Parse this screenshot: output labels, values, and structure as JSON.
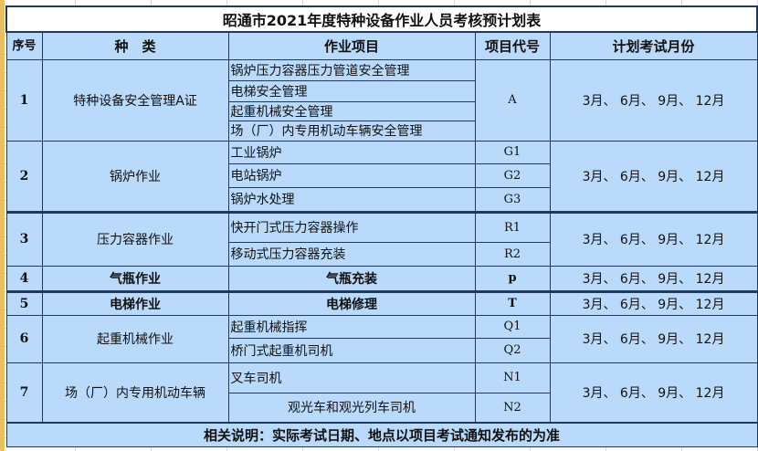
{
  "title": "昭通市2021年度特种设备作业人员考核预计划表",
  "headers": {
    "seq": "序号",
    "category": "种　类",
    "item": "作业项目",
    "code": "项目代号",
    "months": "计划考试月份"
  },
  "rows": [
    {
      "seq": "1",
      "category": "特种设备安全管理A证",
      "bold": false,
      "items": [
        {
          "name": "锅炉压力容器压力管道安全管理"
        },
        {
          "name": "电梯安全管理"
        },
        {
          "name": "起重机械安全管理"
        },
        {
          "name": "场（厂）内专用机动车辆安全管理"
        }
      ],
      "codes": [
        "A"
      ],
      "months": "3月、 6月、 9月、 12月"
    },
    {
      "seq": "2",
      "category": "锅炉作业",
      "bold": false,
      "items": [
        {
          "name": "工业锅炉",
          "code": "G1"
        },
        {
          "name": "电站锅炉",
          "code": "G2"
        },
        {
          "name": "锅炉水处理",
          "code": "G3"
        }
      ],
      "months": "3月、 6月、 9月、 12月"
    },
    {
      "seq": "3",
      "category": "压力容器作业",
      "bold": false,
      "items": [
        {
          "name": "快开门式压力容器操作",
          "code": "R1"
        },
        {
          "name": "移动式压力容器充装",
          "code": "R2"
        }
      ],
      "months": "3月、 6月、 9月、 12月"
    },
    {
      "seq": "4",
      "category": "气瓶作业",
      "bold": true,
      "items": [
        {
          "name": "气瓶充装",
          "code": "p"
        }
      ],
      "months": "3月、 6月、 9月、 12月"
    },
    {
      "seq": "5",
      "category": "电梯作业",
      "bold": true,
      "items": [
        {
          "name": "电梯修理",
          "code": "T"
        }
      ],
      "months": "3月、 6月、 9月、 12月"
    },
    {
      "seq": "6",
      "category": "起重机械作业",
      "bold": false,
      "items": [
        {
          "name": "起重机械指挥",
          "code": "Q1"
        },
        {
          "name": "桥门式起重机司机",
          "code": "Q2"
        }
      ],
      "months": "3月、 6月、 9月、 12月"
    },
    {
      "seq": "7",
      "category": "场（厂）内专用机动车辆",
      "bold": false,
      "items": [
        {
          "name": "叉车司机",
          "code": "N1"
        },
        {
          "name": "观光车和观光列车司机",
          "code": "N2",
          "centered": true
        }
      ],
      "months": "3月、 6月、 9月、 12月"
    }
  ],
  "footer": "相关说明：实际考试日期、地点以项目考试通知发布的为准",
  "colors": {
    "cell_fill": "#b9dafa",
    "border": "#1f3a5c"
  }
}
